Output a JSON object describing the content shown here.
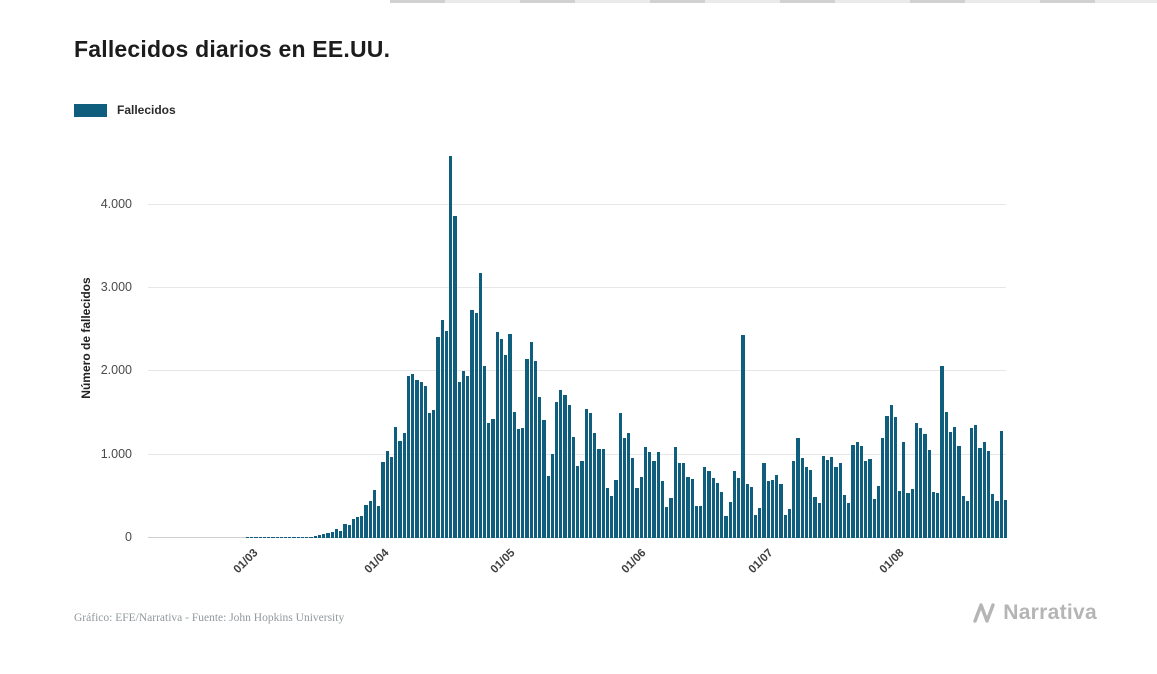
{
  "header": {
    "title": "Fallecidos diarios en EE.UU."
  },
  "legend": {
    "label": "Fallecidos"
  },
  "footer": {
    "caption": "Gráfico: EFE/Narrativa - Fuente: John Hopkins University",
    "brand": "Narrativa"
  },
  "colors": {
    "bar": "#0f5e7e",
    "grid": "#e7e7e7",
    "axis": "#cfcfcf",
    "title": "#1c1c1c",
    "tick": "#4a4a4a",
    "caption": "#91989c",
    "brand": "#b5b5b5"
  },
  "chart_data": {
    "type": "bar",
    "title": "Fallecidos diarios en EE.UU.",
    "series_name": "Fallecidos",
    "xlabel": "",
    "ylabel": "Número de fallecidos",
    "ylim": [
      0,
      4800
    ],
    "frequency": "daily",
    "start_date": "2020-02-06",
    "grid": true,
    "legend_position": "top-left",
    "y_ticks": [
      {
        "value": 0,
        "label": "0"
      },
      {
        "value": 1000,
        "label": "1.000"
      },
      {
        "value": 2000,
        "label": "2.000"
      },
      {
        "value": 3000,
        "label": "3.000"
      },
      {
        "value": 4000,
        "label": "4.000"
      }
    ],
    "x_ticks": [
      {
        "index": 24,
        "label": "01/03"
      },
      {
        "index": 55,
        "label": "01/04"
      },
      {
        "index": 85,
        "label": "01/05"
      },
      {
        "index": 116,
        "label": "01/06"
      },
      {
        "index": 146,
        "label": "01/07"
      },
      {
        "index": 177,
        "label": "01/08"
      }
    ],
    "values": [
      0,
      0,
      0,
      0,
      0,
      0,
      0,
      0,
      0,
      0,
      0,
      0,
      0,
      0,
      0,
      0,
      0,
      0,
      0,
      0,
      0,
      0,
      0,
      1,
      1,
      1,
      2,
      3,
      2,
      4,
      3,
      4,
      6,
      4,
      8,
      7,
      11,
      10,
      18,
      23,
      41,
      50,
      57,
      68,
      110,
      80,
      164,
      155,
      225,
      247,
      268,
      400,
      445,
      576,
      380,
      909,
      1050,
      968,
      1330,
      1165,
      1255,
      1940,
      1970,
      1900,
      1870,
      1830,
      1500,
      1540,
      2410,
      2620,
      2490,
      4590,
      3860,
      1870,
      2000,
      1940,
      2740,
      2700,
      3180,
      2065,
      1384,
      1434,
      2470,
      2390,
      2200,
      2448,
      1510,
      1313,
      1324,
      2144,
      2353,
      2129,
      1687,
      1422,
      750,
      1008,
      1630,
      1772,
      1715,
      1595,
      1218,
      865,
      921,
      1552,
      1500,
      1263,
      1072,
      1066,
      605,
      500,
      693,
      1505,
      1199,
      1265,
      960,
      605,
      730,
      1093,
      1036,
      921,
      1036,
      685,
      373,
      476,
      1093,
      905,
      902,
      732,
      709,
      389,
      382,
      858,
      800,
      722,
      665,
      556,
      267,
      437,
      800,
      722,
      2437,
      648,
      616,
      271,
      356,
      900,
      680,
      700,
      760,
      650,
      280,
      350,
      920,
      1195,
      960,
      850,
      820,
      490,
      420,
      980,
      935,
      970,
      850,
      900,
      516,
      420,
      1120,
      1150,
      1100,
      920,
      950,
      470,
      630,
      1200,
      1462,
      1600,
      1450,
      560,
      1150,
      540,
      590,
      1380,
      1320,
      1250,
      1060,
      550,
      540,
      2060,
      1510,
      1270,
      1330,
      1110,
      510,
      450,
      1320,
      1360,
      1080,
      1150,
      1050,
      530,
      450,
      1280,
      460
    ]
  }
}
